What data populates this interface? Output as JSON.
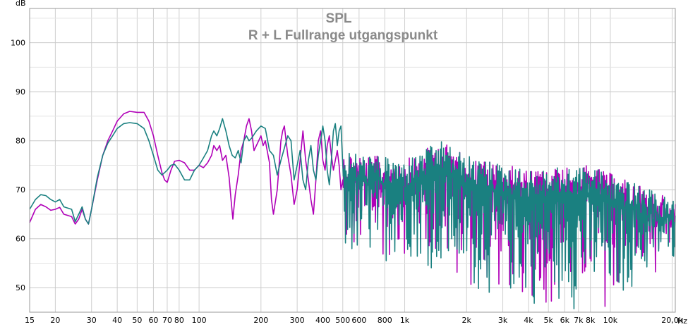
{
  "chart_data": {
    "type": "line",
    "title": "SPL",
    "subtitle": "R + L Fullrange utgangspunkt",
    "ylabel": "dB",
    "xlabel": "Hz",
    "x_scale": "log",
    "xlim": [
      15,
      20700
    ],
    "ylim": [
      45,
      107
    ],
    "grid": true,
    "legend": "none",
    "x_ticks": [
      {
        "value": 15,
        "label": "15"
      },
      {
        "value": 20,
        "label": "20"
      },
      {
        "value": 30,
        "label": "30"
      },
      {
        "value": 40,
        "label": "40"
      },
      {
        "value": 50,
        "label": "50"
      },
      {
        "value": 60,
        "label": "60"
      },
      {
        "value": 70,
        "label": "70"
      },
      {
        "value": 80,
        "label": "80"
      },
      {
        "value": 100,
        "label": "100"
      },
      {
        "value": 200,
        "label": "200"
      },
      {
        "value": 300,
        "label": "300"
      },
      {
        "value": 400,
        "label": "400"
      },
      {
        "value": 500,
        "label": "500"
      },
      {
        "value": 600,
        "label": "600"
      },
      {
        "value": 800,
        "label": "800"
      },
      {
        "value": 1000,
        "label": "1k"
      },
      {
        "value": 2000,
        "label": "2k"
      },
      {
        "value": 3000,
        "label": "3k"
      },
      {
        "value": 4000,
        "label": "4k"
      },
      {
        "value": 5000,
        "label": "5k"
      },
      {
        "value": 6000,
        "label": "6k"
      },
      {
        "value": 7000,
        "label": "7k"
      },
      {
        "value": 8000,
        "label": "8k"
      },
      {
        "value": 10000,
        "label": "10k"
      },
      {
        "value": 20000,
        "label": "20,0k"
      }
    ],
    "y_ticks": [
      50,
      60,
      70,
      80,
      90,
      100
    ],
    "series": [
      {
        "color": "#b000b8",
        "points": [
          [
            15,
            63.3
          ],
          [
            16,
            66
          ],
          [
            17,
            67
          ],
          [
            18,
            66.5
          ],
          [
            19,
            65.8
          ],
          [
            20,
            66
          ],
          [
            21,
            66.4
          ],
          [
            22,
            65
          ],
          [
            24,
            64.5
          ],
          [
            25,
            63
          ],
          [
            26,
            64
          ],
          [
            27,
            66
          ],
          [
            28,
            64
          ],
          [
            29,
            63
          ],
          [
            30,
            66
          ],
          [
            32,
            72
          ],
          [
            34,
            77
          ],
          [
            36,
            80
          ],
          [
            38,
            82
          ],
          [
            40,
            84
          ],
          [
            43,
            85.5
          ],
          [
            46,
            86
          ],
          [
            50,
            85.8
          ],
          [
            54,
            85.8
          ],
          [
            57,
            84
          ],
          [
            60,
            81
          ],
          [
            63,
            77
          ],
          [
            66,
            73.5
          ],
          [
            68,
            72
          ],
          [
            70,
            71.5
          ],
          [
            73,
            74
          ],
          [
            76,
            75.8
          ],
          [
            80,
            76
          ],
          [
            85,
            75.5
          ],
          [
            90,
            74
          ],
          [
            95,
            74
          ],
          [
            100,
            75
          ],
          [
            105,
            74.5
          ],
          [
            110,
            75.5
          ],
          [
            115,
            77
          ],
          [
            118,
            79
          ],
          [
            122,
            78
          ],
          [
            126,
            79
          ],
          [
            130,
            76
          ],
          [
            135,
            77
          ],
          [
            140,
            72.5
          ],
          [
            143,
            68
          ],
          [
            146,
            64
          ],
          [
            150,
            69
          ],
          [
            155,
            73
          ],
          [
            160,
            78
          ],
          [
            165,
            80
          ],
          [
            170,
            83
          ],
          [
            175,
            84.5
          ],
          [
            180,
            82
          ],
          [
            185,
            78
          ],
          [
            190,
            79
          ],
          [
            195,
            80
          ],
          [
            200,
            81
          ],
          [
            205,
            79
          ],
          [
            210,
            80
          ],
          [
            220,
            75.5
          ],
          [
            225,
            68
          ],
          [
            230,
            65
          ],
          [
            240,
            70
          ],
          [
            250,
            80
          ],
          [
            255,
            82
          ],
          [
            260,
            83
          ],
          [
            265,
            80
          ],
          [
            270,
            77
          ],
          [
            280,
            73
          ],
          [
            290,
            67
          ],
          [
            300,
            70
          ],
          [
            310,
            76
          ],
          [
            320,
            82
          ],
          [
            330,
            76
          ],
          [
            340,
            72
          ],
          [
            350,
            68
          ],
          [
            360,
            65
          ],
          [
            370,
            72
          ],
          [
            380,
            80
          ],
          [
            390,
            82
          ],
          [
            400,
            76
          ],
          [
            410,
            74
          ],
          [
            420,
            79
          ],
          [
            430,
            81
          ],
          [
            440,
            77
          ],
          [
            450,
            74
          ],
          [
            460,
            76
          ],
          [
            470,
            78
          ],
          [
            480,
            75
          ],
          [
            490,
            70
          ],
          [
            500,
            72
          ]
        ]
      },
      {
        "color": "#1a8080",
        "points": [
          [
            15,
            66
          ],
          [
            16,
            68
          ],
          [
            17,
            69
          ],
          [
            18,
            68.8
          ],
          [
            19,
            68
          ],
          [
            20,
            67.5
          ],
          [
            21,
            68
          ],
          [
            22,
            66.5
          ],
          [
            24,
            66
          ],
          [
            25,
            63.5
          ],
          [
            26,
            65
          ],
          [
            27,
            66.5
          ],
          [
            28,
            64
          ],
          [
            29,
            63
          ],
          [
            30,
            66
          ],
          [
            32,
            72.5
          ],
          [
            34,
            77
          ],
          [
            36,
            79.5
          ],
          [
            38,
            81
          ],
          [
            40,
            82.5
          ],
          [
            43,
            83.5
          ],
          [
            46,
            83.7
          ],
          [
            50,
            83.5
          ],
          [
            54,
            82.5
          ],
          [
            57,
            80
          ],
          [
            60,
            77
          ],
          [
            63,
            74
          ],
          [
            66,
            73
          ],
          [
            70,
            74
          ],
          [
            73,
            75
          ],
          [
            76,
            75.2
          ],
          [
            80,
            74
          ],
          [
            85,
            72
          ],
          [
            90,
            72
          ],
          [
            95,
            74
          ],
          [
            100,
            75
          ],
          [
            105,
            76.5
          ],
          [
            110,
            78
          ],
          [
            115,
            81
          ],
          [
            118,
            82
          ],
          [
            122,
            81
          ],
          [
            126,
            82.5
          ],
          [
            130,
            84.5
          ],
          [
            135,
            82
          ],
          [
            140,
            79
          ],
          [
            145,
            77
          ],
          [
            150,
            76.5
          ],
          [
            155,
            78
          ],
          [
            160,
            75.5
          ],
          [
            165,
            80
          ],
          [
            170,
            81
          ],
          [
            175,
            80
          ],
          [
            180,
            80.5
          ],
          [
            190,
            82
          ],
          [
            200,
            83
          ],
          [
            210,
            82.5
          ],
          [
            220,
            78
          ],
          [
            230,
            77
          ],
          [
            240,
            73
          ],
          [
            250,
            76
          ],
          [
            260,
            78.5
          ],
          [
            270,
            81
          ],
          [
            280,
            80
          ],
          [
            290,
            72
          ],
          [
            300,
            75
          ],
          [
            310,
            78
          ],
          [
            320,
            72
          ],
          [
            330,
            70
          ],
          [
            340,
            76
          ],
          [
            350,
            79
          ],
          [
            360,
            74
          ],
          [
            370,
            72
          ],
          [
            380,
            77
          ],
          [
            390,
            80
          ],
          [
            400,
            83
          ],
          [
            410,
            80
          ],
          [
            420,
            74
          ],
          [
            430,
            71
          ],
          [
            440,
            76
          ],
          [
            450,
            82
          ],
          [
            460,
            83.5
          ],
          [
            470,
            79
          ],
          [
            480,
            82
          ],
          [
            490,
            83
          ],
          [
            500,
            75
          ]
        ]
      }
    ],
    "noise_region": {
      "from_hz": 500,
      "to_hz": 20700,
      "envelope_top_db": [
        [
          500,
          78
        ],
        [
          1000,
          76
        ],
        [
          1500,
          80
        ],
        [
          2000,
          77
        ],
        [
          4000,
          74
        ],
        [
          8000,
          75
        ],
        [
          12000,
          72
        ],
        [
          20000,
          68
        ]
      ],
      "envelope_bottom_db": [
        [
          500,
          53
        ],
        [
          1000,
          56
        ],
        [
          2000,
          48
        ],
        [
          5000,
          45
        ],
        [
          10000,
          45
        ],
        [
          20000,
          55
        ]
      ]
    }
  }
}
